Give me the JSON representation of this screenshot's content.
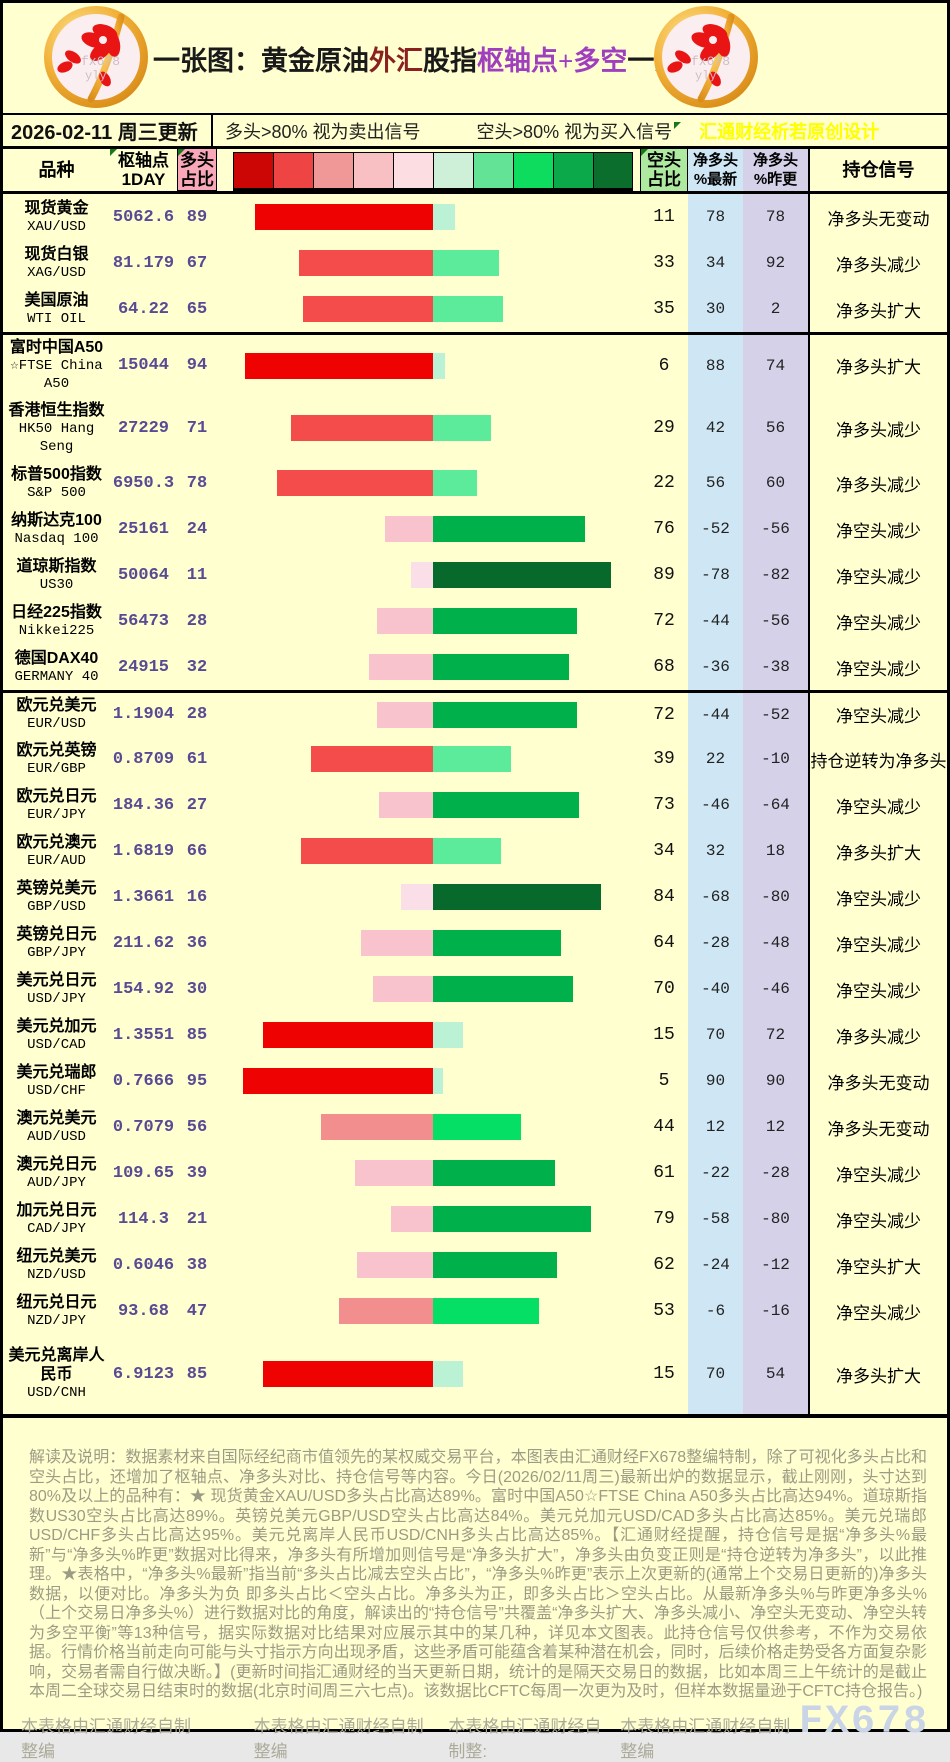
{
  "header": {
    "title_parts": [
      {
        "text": "一张图：黄金原油",
        "color": "#1a1a1a"
      },
      {
        "text": "外汇",
        "color": "#8b2020"
      },
      {
        "text": "股指",
        "color": "#1a1a1a"
      },
      {
        "text": "枢轴点+多空",
        "color": "#9f3fbf"
      },
      {
        "text": "一览",
        "color": "#1a1a1a"
      }
    ],
    "logo_watermark": "fx678 yly"
  },
  "subheader": {
    "date": "2026-02-11 周三更新",
    "long_note": "多头>80% 视为卖出信号",
    "short_note": "空头>80% 视为买入信号",
    "credit": "汇通财经析若原创设计"
  },
  "table_headers": {
    "product": "品种",
    "pivot_l1": "枢轴点",
    "pivot_l2": "1DAY",
    "long_l1": "多头",
    "long_l2": "占比",
    "short_l1": "空头",
    "short_l2": "占比",
    "netl_l1": "净多头",
    "netl_l2": "%最新",
    "netp_l1": "净多头",
    "netp_l2": "%昨更",
    "signal": "持仓信号"
  },
  "chart_data": {
    "type": "table",
    "title": "一张图：黄金原油外汇股指枢轴点+多空一览",
    "columns": [
      "品种",
      "枢轴点1DAY",
      "多头占比",
      "空头占比",
      "净多头%最新",
      "净多头%昨更",
      "持仓信号"
    ],
    "legend_scale_colors": [
      "#cc0505",
      "#ee4444",
      "#f09898",
      "#f9c0c4",
      "#fcdde2",
      "#cff0d8",
      "#62e396",
      "#0ddc5e",
      "#0ca94a",
      "#0b6e2d"
    ],
    "group_break_after": [
      2,
      9
    ],
    "rows": [
      {
        "cn": [
          "现货黄金"
        ],
        "en": [
          "XAU/USD"
        ],
        "pivot": "5062.6",
        "long_pct": 89,
        "short_pct": 11,
        "net_latest": 78,
        "net_prev": 78,
        "signal": "净多头无变动"
      },
      {
        "cn": [
          "现货白银"
        ],
        "en": [
          "XAG/USD"
        ],
        "pivot": "81.179",
        "long_pct": 67,
        "short_pct": 33,
        "net_latest": 34,
        "net_prev": 92,
        "signal": "净多头减少"
      },
      {
        "cn": [
          "美国原油"
        ],
        "en": [
          "WTI OIL"
        ],
        "pivot": "64.22",
        "long_pct": 65,
        "short_pct": 35,
        "net_latest": 30,
        "net_prev": 2,
        "signal": "净多头扩大"
      },
      {
        "cn": [
          "富时中国A50"
        ],
        "en": [
          "☆FTSE China",
          "A50"
        ],
        "pivot": "15044",
        "long_pct": 94,
        "short_pct": 6,
        "net_latest": 88,
        "net_prev": 74,
        "signal": "净多头扩大"
      },
      {
        "cn": [
          "香港恒生指数"
        ],
        "en": [
          "HK50 Hang",
          "Seng"
        ],
        "pivot": "27229",
        "long_pct": 71,
        "short_pct": 29,
        "net_latest": 42,
        "net_prev": 56,
        "signal": "净多头减少"
      },
      {
        "cn": [
          "标普500指数"
        ],
        "en": [
          "S&P 500"
        ],
        "pivot": "6950.3",
        "long_pct": 78,
        "short_pct": 22,
        "net_latest": 56,
        "net_prev": 60,
        "signal": "净多头减少"
      },
      {
        "cn": [
          "纳斯达克100"
        ],
        "en": [
          "Nasdaq 100"
        ],
        "pivot": "25161",
        "long_pct": 24,
        "short_pct": 76,
        "net_latest": -52,
        "net_prev": -56,
        "signal": "净空头减少"
      },
      {
        "cn": [
          "道琼斯指数"
        ],
        "en": [
          "US30"
        ],
        "pivot": "50064",
        "long_pct": 11,
        "short_pct": 89,
        "net_latest": -78,
        "net_prev": -82,
        "signal": "净空头减少"
      },
      {
        "cn": [
          "日经225指数"
        ],
        "en": [
          "Nikkei225"
        ],
        "pivot": "56473",
        "long_pct": 28,
        "short_pct": 72,
        "net_latest": -44,
        "net_prev": -56,
        "signal": "净空头减少"
      },
      {
        "cn": [
          "德国DAX40"
        ],
        "en": [
          "GERMANY 40"
        ],
        "pivot": "24915",
        "long_pct": 32,
        "short_pct": 68,
        "net_latest": -36,
        "net_prev": -38,
        "signal": "净空头减少"
      },
      {
        "cn": [
          "欧元兑美元"
        ],
        "en": [
          "EUR/USD"
        ],
        "pivot": "1.1904",
        "long_pct": 28,
        "short_pct": 72,
        "net_latest": -44,
        "net_prev": -52,
        "signal": "净空头减少"
      },
      {
        "cn": [
          "欧元兑英镑"
        ],
        "en": [
          "EUR/GBP"
        ],
        "pivot": "0.8709",
        "long_pct": 61,
        "short_pct": 39,
        "net_latest": 22,
        "net_prev": -10,
        "signal": "持仓逆转为净多头"
      },
      {
        "cn": [
          "欧元兑日元"
        ],
        "en": [
          "EUR/JPY"
        ],
        "pivot": "184.36",
        "long_pct": 27,
        "short_pct": 73,
        "net_latest": -46,
        "net_prev": -64,
        "signal": "净空头减少"
      },
      {
        "cn": [
          "欧元兑澳元"
        ],
        "en": [
          "EUR/AUD"
        ],
        "pivot": "1.6819",
        "long_pct": 66,
        "short_pct": 34,
        "net_latest": 32,
        "net_prev": 18,
        "signal": "净多头扩大"
      },
      {
        "cn": [
          "英镑兑美元"
        ],
        "en": [
          "GBP/USD"
        ],
        "pivot": "1.3661",
        "long_pct": 16,
        "short_pct": 84,
        "net_latest": -68,
        "net_prev": -80,
        "signal": "净空头减少"
      },
      {
        "cn": [
          "英镑兑日元"
        ],
        "en": [
          "GBP/JPY"
        ],
        "pivot": "211.62",
        "long_pct": 36,
        "short_pct": 64,
        "net_latest": -28,
        "net_prev": -48,
        "signal": "净空头减少"
      },
      {
        "cn": [
          "美元兑日元"
        ],
        "en": [
          "USD/JPY"
        ],
        "pivot": "154.92",
        "long_pct": 30,
        "short_pct": 70,
        "net_latest": -40,
        "net_prev": -46,
        "signal": "净空头减少"
      },
      {
        "cn": [
          "美元兑加元"
        ],
        "en": [
          "USD/CAD"
        ],
        "pivot": "1.3551",
        "long_pct": 85,
        "short_pct": 15,
        "net_latest": 70,
        "net_prev": 72,
        "signal": "净多头减少"
      },
      {
        "cn": [
          "美元兑瑞郎"
        ],
        "en": [
          "USD/CHF"
        ],
        "pivot": "0.7666",
        "long_pct": 95,
        "short_pct": 5,
        "net_latest": 90,
        "net_prev": 90,
        "signal": "净多头无变动"
      },
      {
        "cn": [
          "澳元兑美元"
        ],
        "en": [
          "AUD/USD"
        ],
        "pivot": "0.7079",
        "long_pct": 56,
        "short_pct": 44,
        "net_latest": 12,
        "net_prev": 12,
        "signal": "净多头无变动"
      },
      {
        "cn": [
          "澳元兑日元"
        ],
        "en": [
          "AUD/JPY"
        ],
        "pivot": "109.65",
        "long_pct": 39,
        "short_pct": 61,
        "net_latest": -22,
        "net_prev": -28,
        "signal": "净空头减少"
      },
      {
        "cn": [
          "加元兑日元"
        ],
        "en": [
          "CAD/JPY"
        ],
        "pivot": "114.3",
        "long_pct": 21,
        "short_pct": 79,
        "net_latest": -58,
        "net_prev": -80,
        "signal": "净空头减少"
      },
      {
        "cn": [
          "纽元兑美元"
        ],
        "en": [
          "NZD/USD"
        ],
        "pivot": "0.6046",
        "long_pct": 38,
        "short_pct": 62,
        "net_latest": -24,
        "net_prev": -12,
        "signal": "净空头扩大"
      },
      {
        "cn": [
          "纽元兑日元"
        ],
        "en": [
          "NZD/JPY"
        ],
        "pivot": "93.68",
        "long_pct": 47,
        "short_pct": 53,
        "net_latest": -6,
        "net_prev": -16,
        "signal": "净空头减少"
      },
      {
        "cn": [
          "美元兑离岸人",
          "民币"
        ],
        "en": [
          "USD/CNH"
        ],
        "pivot": "6.9123",
        "long_pct": 85,
        "short_pct": 15,
        "net_latest": 70,
        "net_prev": 54,
        "signal": "净多头扩大"
      }
    ]
  },
  "colors": {
    "page_bg": "#ffffd0",
    "long_header_bg": "#f8a8b8",
    "short_header_bg": "#aee9a0",
    "net_latest_col_bg": "#cfe7f4",
    "net_prev_col_bg": "#d5d1e9",
    "value_purple": "#584a93",
    "credit_yellow": "#ffff00",
    "marker_green": "#177a17",
    "long_bar_buckets": [
      [
        85,
        "#ee0202"
      ],
      [
        60,
        "#f44b4b"
      ],
      [
        45,
        "#f28e8e"
      ],
      [
        20,
        "#f8c3cc"
      ],
      [
        0,
        "#fbdfe8"
      ]
    ],
    "short_bar_buckets": [
      [
        83,
        "#07692c"
      ],
      [
        58,
        "#00b04a"
      ],
      [
        42,
        "#06df66"
      ],
      [
        20,
        "#5ceb9b"
      ],
      [
        0,
        "#bbf2d6"
      ]
    ]
  },
  "explanation": {
    "text": "解读及说明：数据素材来自国际经纪商市值领先的某权威交易平台，本图表由汇通财经FX678整编特制，除了可视化多头占比和空头占比，还增加了枢轴点、净多头对比、持仓信号等内容。今日(2026/02/11周三)最新出炉的数据显示，截止刚刚，头寸达到80%及以上的品种有：★ 现货黄金XAU/USD多头占比高达89%。富时中国A50☆FTSE China A50多头占比高达94%。道琼斯指数US30空头占比高达89%。英镑兑美元GBP/USD空头占比高达84%。美元兑加元USD/CAD多头占比高达85%。美元兑瑞郎USD/CHF多头占比高达95%。美元兑离岸人民币USD/CNH多头占比高达85%。【汇通财经提醒，持仓信号是据“净多头%最新”与“净多头%昨更”数据对比得来，净多头有所增加则信号是“净多头扩大”，净多头由负变正则是“持仓逆转为净多头”，以此推理。★表格中，“净多头%最新”指当前“多头占比减去空头占比”，“净多头%昨更”表示上次更新的(通常上个交易日更新的)净多头数据，以便对比。净多头为负 即多头占比＜空头占比。净多头为正，即多头占比＞空头占比。从最新净多头%与昨更净多头%（上个交易日净多头%）进行数据对比的角度，解读出的“持仓信号”共覆盖“净多头扩大、净多头减小、净空头无变动、净空头转为多空平衡”等13种信号，据实际数据对比结果对应展示其中的某几种，详见本文图表。此持仓信号仅供参考，不作为交易依据。行情价格当前走向可能与头寸指示方向出现矛盾，这些矛盾可能蕴含着某种潜在机会，同时，后续价格走势受各方面复杂影响，交易者需自行做决断。】(更新时间指汇通财经的当天更新日期，统计的是隔天交易日的数据，比如本周三上午统计的是截止本周二全球交易日结束时的数据(北京时间周三六七点)。该数据比CFTC每周一次更为及时，但样本数据量逊于CFTC持仓报告。)"
  },
  "footer": {
    "credits": [
      "本表格由汇通财经自制整编",
      "本表格由汇通财经自制整编",
      "本表格由汇通财经自制整:",
      "本表格由汇通财经自制整编"
    ],
    "watermark": "FX678"
  }
}
